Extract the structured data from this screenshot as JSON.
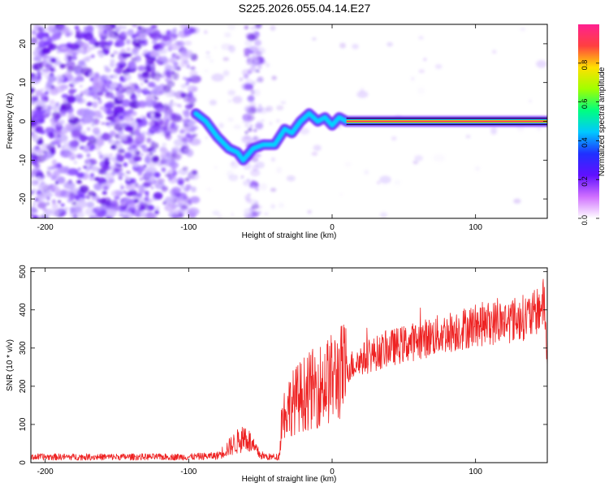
{
  "title": "S225.2026.055.04.14.E27",
  "chart_data": [
    {
      "type": "heatmap",
      "name": "spectrogram",
      "xlabel": "Height of straight line (km)",
      "ylabel": "Frequency (Hz)",
      "xlim": [
        -210,
        150
      ],
      "ylim": [
        -25,
        25
      ],
      "xticks": [
        -200,
        -100,
        0,
        100
      ],
      "yticks": [
        -20,
        -10,
        0,
        10,
        20
      ],
      "colorbar": {
        "label": "Normalized spectral amplitude",
        "range": [
          0,
          1
        ],
        "ticks": [
          0.0,
          0.2,
          0.4,
          0.6,
          0.8
        ],
        "colors": [
          "#ffffff",
          "#d070ff",
          "#6010ff",
          "#2030ff",
          "#00c8ff",
          "#00ff80",
          "#a0ff00",
          "#ffe000",
          "#ff4040",
          "#ff2090"
        ]
      },
      "tone_track": [
        {
          "x": -95,
          "y": 2
        },
        {
          "x": -88,
          "y": 0
        },
        {
          "x": -80,
          "y": -4
        },
        {
          "x": -72,
          "y": -7
        },
        {
          "x": -66,
          "y": -8
        },
        {
          "x": -62,
          "y": -10
        },
        {
          "x": -55,
          "y": -7
        },
        {
          "x": -48,
          "y": -6
        },
        {
          "x": -40,
          "y": -6
        },
        {
          "x": -33,
          "y": -2
        },
        {
          "x": -28,
          "y": -3
        },
        {
          "x": -22,
          "y": 0
        },
        {
          "x": -16,
          "y": 2
        },
        {
          "x": -10,
          "y": 0
        },
        {
          "x": -5,
          "y": 1
        },
        {
          "x": 0,
          "y": -1
        },
        {
          "x": 5,
          "y": 1
        },
        {
          "x": 10,
          "y": 0
        },
        {
          "x": 150,
          "y": 0
        }
      ]
    },
    {
      "type": "line",
      "name": "snr",
      "xlabel": "Height of straight line (km)",
      "ylabel": "SNR (10 * v/v)",
      "xlim": [
        -210,
        150
      ],
      "ylim": [
        0,
        510
      ],
      "xticks": [
        -200,
        -100,
        0,
        100
      ],
      "yticks": [
        0,
        100,
        200,
        300,
        400,
        500
      ],
      "color": "#ee2222",
      "series": [
        {
          "name": "SNR",
          "x": [
            -210,
            -150,
            -100,
            -80,
            -70,
            -60,
            -55,
            -50,
            -45,
            -40,
            -37,
            -35,
            -30,
            -20,
            -10,
            0,
            10,
            20,
            40,
            60,
            80,
            100,
            120,
            140,
            148,
            150
          ],
          "y": [
            15,
            15,
            15,
            18,
            45,
            70,
            40,
            20,
            15,
            15,
            15,
            120,
            150,
            180,
            200,
            220,
            245,
            270,
            300,
            320,
            340,
            360,
            370,
            385,
            420,
            260
          ]
        }
      ]
    }
  ]
}
